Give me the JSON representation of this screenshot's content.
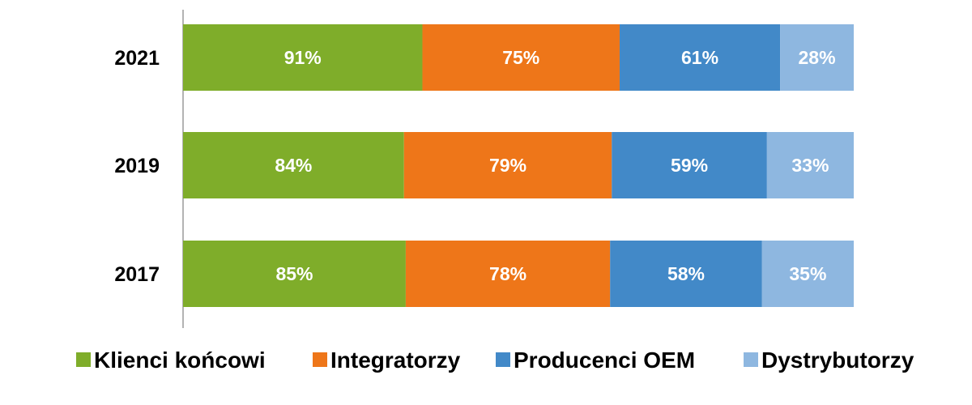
{
  "chart_data": {
    "type": "bar",
    "orientation": "horizontal",
    "stacked": true,
    "categories": [
      "2021",
      "2019",
      "2017"
    ],
    "series": [
      {
        "name": "Klienci końcowi",
        "values": [
          91,
          84,
          85
        ],
        "color": "#7FAD2A"
      },
      {
        "name": "Integratorzy",
        "values": [
          75,
          79,
          78
        ],
        "color": "#EE7619"
      },
      {
        "name": "Producenci OEM",
        "values": [
          61,
          59,
          58
        ],
        "color": "#4289C8"
      },
      {
        "name": "Dystrybutorzy",
        "values": [
          28,
          33,
          35
        ],
        "color": "#8EB7E0"
      }
    ],
    "value_suffix": "%",
    "data_labels": true,
    "legend_position": "bottom",
    "grid": false,
    "title": "",
    "xlabel": "",
    "ylabel": ""
  }
}
